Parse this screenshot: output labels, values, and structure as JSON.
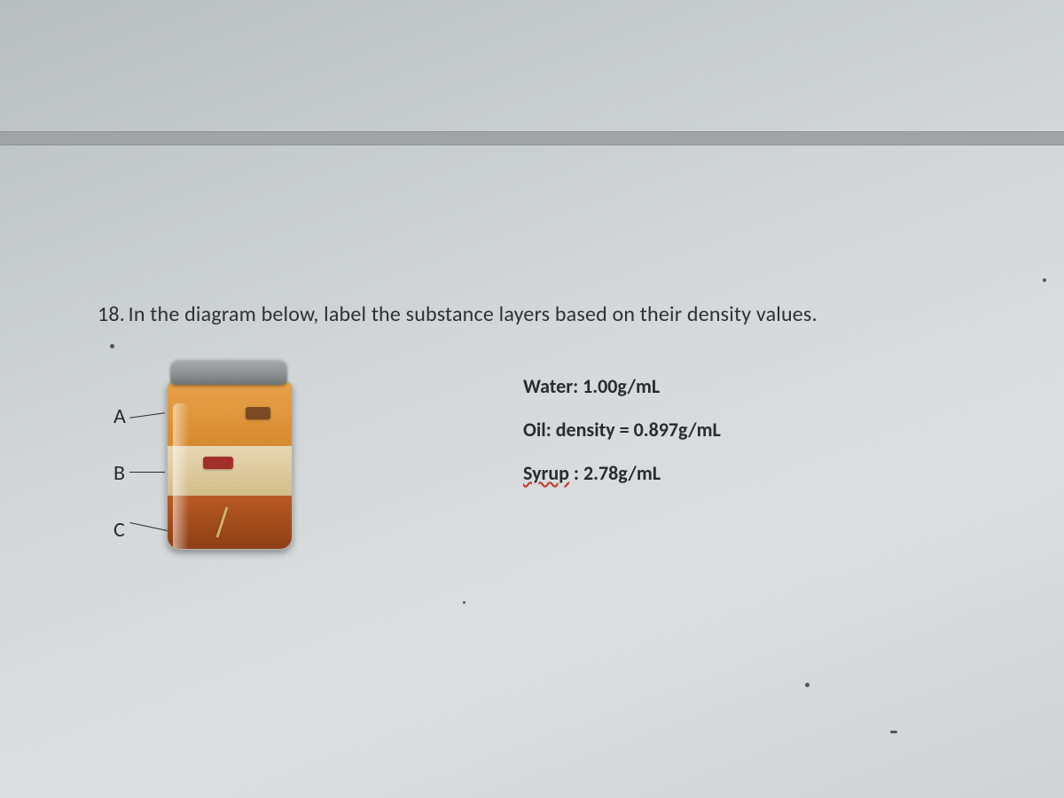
{
  "question": {
    "number": "18.",
    "text": "In the diagram below, label the substance layers based on their density values."
  },
  "diagram": {
    "labels": {
      "a": "A",
      "b": "B",
      "c": "C"
    },
    "layers": {
      "a_color": "#d78a2f",
      "b_color": "#d2bc8a",
      "c_color": "#8e3f15"
    },
    "lid_color": "#8f9393"
  },
  "substances": [
    {
      "name": "Water",
      "sep": ": ",
      "value": "1.00g/mL",
      "underline": false
    },
    {
      "name": "Oil",
      "sep": ": density = ",
      "value": "0.897g/mL",
      "underline": false
    },
    {
      "name": "Syrup",
      "sep": " : ",
      "value": "2.78g/mL",
      "underline": true
    }
  ],
  "style": {
    "text_color": "#2b2b2b",
    "background_gradient": [
      "#b8bdbf",
      "#dcdfe0"
    ],
    "question_fontsize": 24,
    "density_fontsize": 22
  }
}
